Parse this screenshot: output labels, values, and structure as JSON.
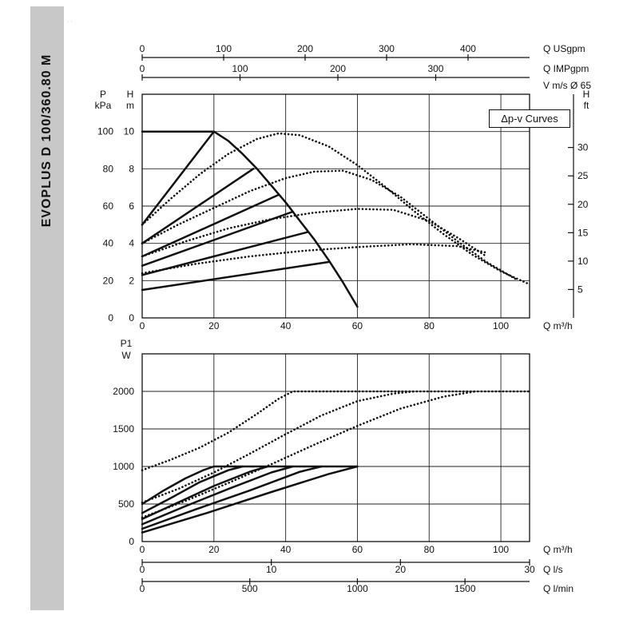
{
  "page": {
    "background": "#ffffff"
  },
  "colors": {
    "ink": "#111111",
    "grid": "#222222",
    "sidebar_bg": "#c8c8c8"
  },
  "sidebar": {
    "title": "EVOPLUS D 100/360.80 M"
  },
  "artifact": "··",
  "chart_data": [
    {
      "id": "head-vs-flow",
      "type": "line",
      "annotation_box": "Δp-v Curves",
      "velocity_label": "V m/s Ø 65",
      "x_axis": {
        "label": "Q m³/h",
        "min": 0,
        "max": 108,
        "grid_step": 20,
        "ticks": [
          0,
          20,
          40,
          60,
          80,
          100
        ]
      },
      "x_top_usgpm": {
        "label": "Q USgpm",
        "ticks": [
          0,
          100,
          200,
          300,
          400
        ]
      },
      "x_top_impgpm": {
        "label": "Q IMPgpm",
        "ticks": [
          0,
          100,
          200,
          300
        ]
      },
      "y_left_kpa": {
        "title_top": "P",
        "title_bottom": "kPa",
        "ticks": [
          0,
          20,
          40,
          60,
          80,
          100
        ]
      },
      "y_left_m": {
        "title_top": "H",
        "title_bottom": "m",
        "min": 0,
        "max": 12,
        "grid_step": 2,
        "ticks": [
          0,
          2,
          4,
          6,
          8,
          10
        ]
      },
      "y_right_ft": {
        "title_top": "H",
        "title_bottom": "ft",
        "ticks": [
          5,
          10,
          15,
          20,
          25,
          30
        ]
      },
      "series_solid": [
        {
          "name": "max-head-curve",
          "points": [
            [
              0,
              10
            ],
            [
              20,
              10
            ],
            [
              24,
              9.5
            ],
            [
              28,
              8.8
            ],
            [
              32,
              8.0
            ],
            [
              36,
              7.1
            ],
            [
              40,
              6.2
            ],
            [
              44,
              5.2
            ],
            [
              48,
              4.2
            ],
            [
              52,
              3.1
            ],
            [
              56,
              1.9
            ],
            [
              60,
              0.6
            ]
          ]
        },
        {
          "name": "dpv-line-1",
          "points": [
            [
              0,
              5
            ],
            [
              20,
              10
            ]
          ]
        },
        {
          "name": "dpv-line-2",
          "points": [
            [
              0,
              4
            ],
            [
              31,
              8
            ]
          ]
        },
        {
          "name": "dpv-line-3",
          "points": [
            [
              0,
              3.3
            ],
            [
              38,
              6.6
            ]
          ]
        },
        {
          "name": "dpv-line-4",
          "points": [
            [
              0,
              2.8
            ],
            [
              42,
              5.7
            ]
          ]
        },
        {
          "name": "dpv-line-5",
          "points": [
            [
              0,
              2.3
            ],
            [
              46,
              4.6
            ]
          ]
        },
        {
          "name": "dpv-line-6",
          "points": [
            [
              0,
              1.5
            ],
            [
              52,
              3.0
            ]
          ]
        }
      ],
      "series_dotted": [
        {
          "name": "limit-curve-1",
          "points": [
            [
              0,
              5.0
            ],
            [
              8,
              6.4
            ],
            [
              16,
              7.7
            ],
            [
              24,
              8.8
            ],
            [
              32,
              9.6
            ],
            [
              38,
              9.9
            ],
            [
              44,
              9.8
            ],
            [
              52,
              9.2
            ],
            [
              60,
              8.2
            ],
            [
              68,
              7.0
            ],
            [
              76,
              5.7
            ],
            [
              84,
              4.5
            ],
            [
              92,
              3.4
            ],
            [
              100,
              2.5
            ],
            [
              108,
              1.8
            ]
          ]
        },
        {
          "name": "limit-curve-2",
          "points": [
            [
              0,
              4.0
            ],
            [
              10,
              5.0
            ],
            [
              20,
              5.9
            ],
            [
              30,
              6.8
            ],
            [
              40,
              7.5
            ],
            [
              48,
              7.85
            ],
            [
              56,
              7.9
            ],
            [
              64,
              7.4
            ],
            [
              72,
              6.5
            ],
            [
              80,
              5.3
            ],
            [
              88,
              4.1
            ],
            [
              96,
              3.0
            ],
            [
              104,
              2.1
            ]
          ]
        },
        {
          "name": "limit-curve-3",
          "points": [
            [
              0,
              3.3
            ],
            [
              12,
              4.1
            ],
            [
              24,
              4.8
            ],
            [
              36,
              5.3
            ],
            [
              48,
              5.65
            ],
            [
              60,
              5.85
            ],
            [
              70,
              5.8
            ],
            [
              80,
              5.2
            ],
            [
              88,
              4.3
            ],
            [
              96,
              3.3
            ]
          ]
        },
        {
          "name": "limit-curve-4",
          "points": [
            [
              0,
              2.4
            ],
            [
              15,
              2.9
            ],
            [
              30,
              3.3
            ],
            [
              45,
              3.6
            ],
            [
              60,
              3.8
            ],
            [
              75,
              3.95
            ],
            [
              88,
              3.85
            ],
            [
              96,
              3.5
            ]
          ]
        }
      ]
    },
    {
      "id": "power-vs-flow",
      "type": "line",
      "y_axis": {
        "title_top": "P1",
        "title_bottom": "W",
        "min": 0,
        "max": 2500,
        "grid_step": 500,
        "ticks": [
          0,
          500,
          1000,
          1500,
          2000
        ]
      },
      "x_axis": {
        "label": "Q m³/h",
        "min": 0,
        "max": 108,
        "grid_step": 20,
        "ticks": [
          0,
          20,
          40,
          60,
          80,
          100
        ]
      },
      "x_ls": {
        "label": "Q l/s",
        "ticks": [
          0,
          10,
          20,
          30
        ]
      },
      "x_lmin": {
        "label": "Q l/min",
        "ticks": [
          0,
          500,
          1000,
          1500
        ]
      },
      "series_solid": [
        {
          "name": "power-curve-1",
          "points": [
            [
              0,
              500
            ],
            [
              6,
              680
            ],
            [
              12,
              840
            ],
            [
              17,
              950
            ],
            [
              20,
              1000
            ],
            [
              60,
              1000
            ]
          ]
        },
        {
          "name": "power-curve-2",
          "points": [
            [
              0,
              380
            ],
            [
              8,
              580
            ],
            [
              16,
              790
            ],
            [
              24,
              950
            ],
            [
              28,
              1000
            ]
          ]
        },
        {
          "name": "power-curve-3",
          "points": [
            [
              0,
              300
            ],
            [
              10,
              520
            ],
            [
              20,
              740
            ],
            [
              30,
              930
            ],
            [
              35,
              1000
            ]
          ]
        },
        {
          "name": "power-curve-4",
          "points": [
            [
              0,
              230
            ],
            [
              12,
              470
            ],
            [
              24,
              700
            ],
            [
              36,
              920
            ],
            [
              42,
              1000
            ]
          ]
        },
        {
          "name": "power-curve-5",
          "points": [
            [
              0,
              170
            ],
            [
              15,
              430
            ],
            [
              30,
              680
            ],
            [
              44,
              930
            ],
            [
              50,
              1000
            ]
          ]
        },
        {
          "name": "power-curve-6",
          "points": [
            [
              0,
              120
            ],
            [
              18,
              380
            ],
            [
              36,
              660
            ],
            [
              52,
              900
            ],
            [
              60,
              1000
            ]
          ]
        }
      ],
      "series_dotted": [
        {
          "name": "power-limit-1",
          "points": [
            [
              0,
              950
            ],
            [
              8,
              1090
            ],
            [
              16,
              1250
            ],
            [
              24,
              1450
            ],
            [
              32,
              1700
            ],
            [
              38,
              1900
            ],
            [
              42,
              2000
            ],
            [
              108,
              2000
            ]
          ]
        },
        {
          "name": "power-limit-2",
          "points": [
            [
              0,
              520
            ],
            [
              10,
              700
            ],
            [
              20,
              920
            ],
            [
              30,
              1170
            ],
            [
              40,
              1430
            ],
            [
              50,
              1680
            ],
            [
              60,
              1870
            ],
            [
              70,
              1970
            ],
            [
              76,
              2000
            ]
          ]
        },
        {
          "name": "power-limit-3",
          "points": [
            [
              0,
              320
            ],
            [
              12,
              540
            ],
            [
              24,
              780
            ],
            [
              36,
              1030
            ],
            [
              48,
              1290
            ],
            [
              60,
              1540
            ],
            [
              72,
              1770
            ],
            [
              84,
              1930
            ],
            [
              93,
              2000
            ]
          ]
        }
      ]
    }
  ]
}
